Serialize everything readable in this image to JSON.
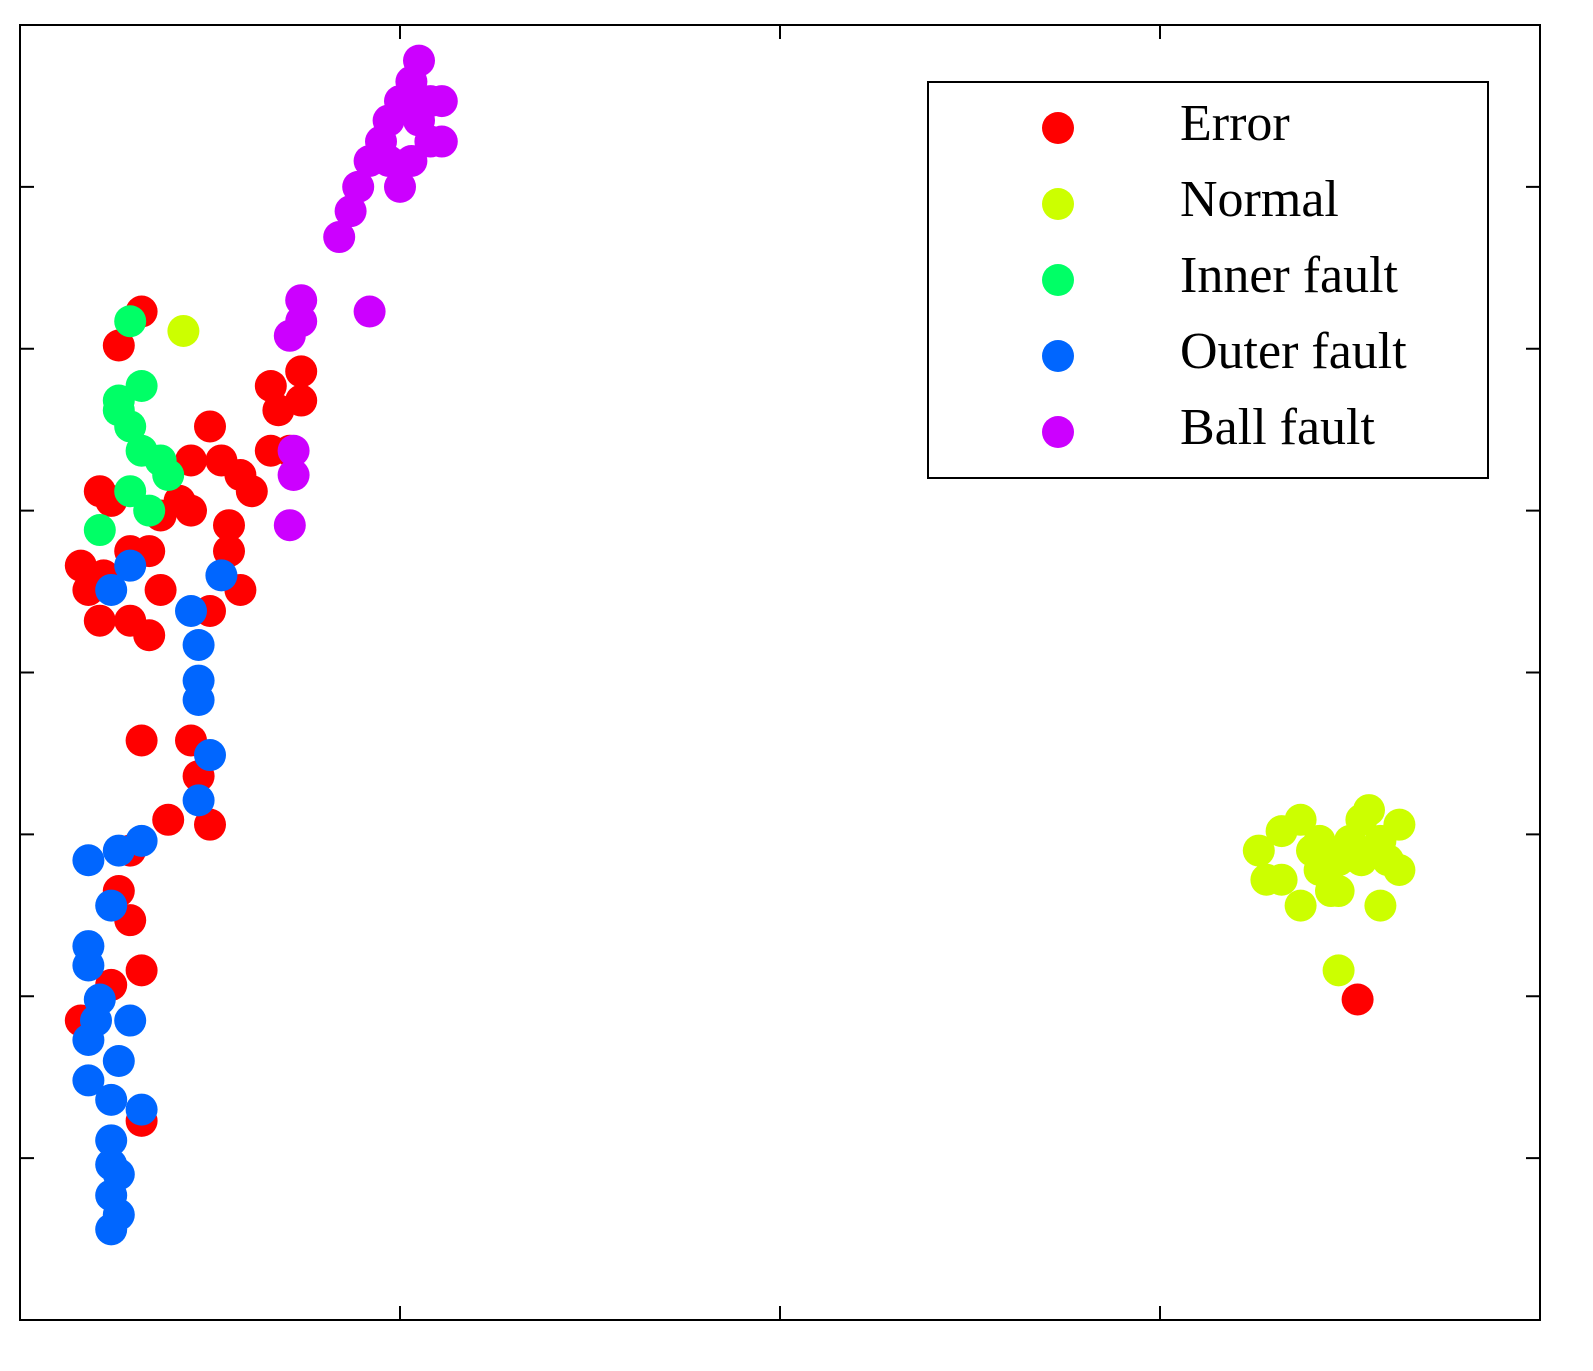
{
  "chart_data": {
    "type": "scatter",
    "xlim": [
      0,
      4
    ],
    "ylim": [
      0,
      8
    ],
    "xticks": [
      1,
      2,
      3
    ],
    "yticks": [
      1,
      2,
      3,
      4,
      5,
      6,
      7
    ],
    "legend": "upper right",
    "series": [
      {
        "name": "Error",
        "color": "#ff0000",
        "x": [
          3.52,
          0.32,
          0.26,
          0.5,
          0.21,
          0.24,
          0.16,
          0.18,
          0.21,
          0.29,
          0.34,
          0.37,
          0.34,
          0.29,
          0.42,
          0.45,
          0.53,
          0.55,
          0.55,
          0.58,
          0.5,
          0.61,
          0.66,
          0.71,
          0.66,
          0.74,
          0.68,
          0.74,
          0.32,
          0.45,
          0.47,
          0.39,
          0.5,
          0.29,
          0.26,
          0.29,
          0.32,
          0.24,
          0.16,
          0.32,
          0.37,
          0.45,
          0.58,
          0.22
        ],
        "y": [
          1.98,
          6.23,
          6.02,
          5.52,
          5.12,
          5.06,
          4.66,
          4.51,
          4.32,
          4.32,
          4.23,
          4.51,
          4.75,
          4.75,
          5.06,
          5.31,
          5.31,
          4.91,
          4.75,
          4.51,
          4.38,
          5.12,
          5.37,
          5.37,
          5.77,
          5.86,
          5.62,
          5.68,
          3.58,
          3.58,
          3.36,
          3.09,
          3.06,
          2.9,
          2.65,
          2.47,
          2.16,
          2.07,
          1.85,
          1.23,
          4.97,
          5.0,
          5.22,
          4.6
        ]
      },
      {
        "name": "Normal",
        "color": "#ccff00",
        "x": [
          0.43,
          3.26,
          3.32,
          3.37,
          3.42,
          3.47,
          3.53,
          3.58,
          3.63,
          3.63,
          3.58,
          3.37,
          3.32,
          3.47,
          3.53,
          3.42,
          3.28,
          3.55,
          3.4,
          3.5,
          3.6,
          3.45,
          3.47
        ],
        "y": [
          6.11,
          2.9,
          3.02,
          3.09,
          2.96,
          2.84,
          3.09,
          2.96,
          3.06,
          2.78,
          2.56,
          2.56,
          2.72,
          2.65,
          2.84,
          2.78,
          2.72,
          3.15,
          2.9,
          2.96,
          2.84,
          2.65,
          2.16
        ]
      },
      {
        "name": "Inner fault",
        "color": "#00ff66",
        "x": [
          0.29,
          0.26,
          0.32,
          0.29,
          0.32,
          0.37,
          0.29,
          0.34,
          0.21,
          0.39,
          0.26
        ],
        "y": [
          6.17,
          5.68,
          5.77,
          5.52,
          5.37,
          5.31,
          5.12,
          5.0,
          4.88,
          5.22,
          5.62
        ]
      },
      {
        "name": "Outer fault",
        "color": "#0066ff",
        "x": [
          0.29,
          0.24,
          0.53,
          0.45,
          0.47,
          0.47,
          0.47,
          0.5,
          0.47,
          0.32,
          0.26,
          0.18,
          0.24,
          0.18,
          0.18,
          0.21,
          0.29,
          0.18,
          0.26,
          0.18,
          0.24,
          0.32,
          0.24,
          0.24,
          0.26,
          0.24,
          0.26,
          0.24,
          0.2
        ],
        "y": [
          4.66,
          4.51,
          4.6,
          4.38,
          4.17,
          3.95,
          3.83,
          3.49,
          3.21,
          2.96,
          2.9,
          2.84,
          2.56,
          2.31,
          2.19,
          1.98,
          1.85,
          1.73,
          1.6,
          1.48,
          1.36,
          1.3,
          1.11,
          0.96,
          0.9,
          0.77,
          0.65,
          0.56,
          1.85
        ]
      },
      {
        "name": "Ball fault",
        "color": "#cc00ff",
        "x": [
          1.05,
          1.03,
          1.08,
          1.11,
          1.0,
          0.97,
          1.05,
          0.95,
          1.08,
          1.03,
          0.92,
          1.0,
          0.89,
          0.87,
          0.84,
          0.92,
          0.74,
          0.71,
          0.74,
          0.72,
          0.72,
          0.71,
          1.11,
          1.05,
          0.97
        ],
        "y": [
          7.78,
          7.65,
          7.53,
          7.53,
          7.53,
          7.41,
          7.41,
          7.28,
          7.28,
          7.16,
          7.16,
          7.0,
          7.0,
          6.85,
          6.69,
          6.23,
          6.3,
          6.08,
          6.17,
          5.37,
          5.22,
          4.91,
          7.28,
          7.53,
          7.16
        ]
      }
    ]
  }
}
